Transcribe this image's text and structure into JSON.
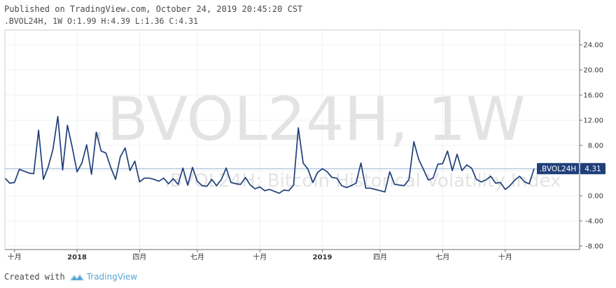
{
  "header": {
    "published": "Published on TradingView.com, October 24, 2019 20:45:20 CST",
    "ohlc": ".BVOL24H, 1W O:1.99 H:4.39 L:1.36 C:4.31"
  },
  "watermark": {
    "main": ".BVOL24H, 1W",
    "sub": ".BVOL24H: Bitcoin Historical Volatility Index"
  },
  "footer": {
    "created_with": "Created with",
    "brand": "TradingView"
  },
  "last_value_tag": {
    "symbol": ".BVOL24H",
    "value": "4.31"
  },
  "colors": {
    "line": "#1f3f7a",
    "tag_bg": "#1f3f7a",
    "last_line": "#9bb3d4",
    "grid": "#eef0f3"
  },
  "chart_data": {
    "type": "line",
    "title": "",
    "xlabel": "",
    "ylabel": "",
    "ylim": [
      -8,
      26
    ],
    "yticks": [
      24,
      20,
      16,
      12,
      8,
      4,
      0,
      -4,
      -8
    ],
    "ytick_labels": [
      "24.00",
      "20.00",
      "16.00",
      "12.00",
      "8.00",
      "4.00",
      "0.00",
      "-4.00",
      "-8.00"
    ],
    "xticks": [
      {
        "label": "十月",
        "idx": 2,
        "bold": false
      },
      {
        "label": "2018",
        "idx": 15,
        "bold": true
      },
      {
        "label": "四月",
        "idx": 28,
        "bold": false
      },
      {
        "label": "七月",
        "idx": 40,
        "bold": false
      },
      {
        "label": "十月",
        "idx": 53,
        "bold": false
      },
      {
        "label": "2019",
        "idx": 66,
        "bold": true
      },
      {
        "label": "四月",
        "idx": 78,
        "bold": false
      },
      {
        "label": "七月",
        "idx": 91,
        "bold": false
      },
      {
        "label": "十月",
        "idx": 104,
        "bold": false
      }
    ],
    "series": [
      {
        "values": [
          2.8,
          2.0,
          2.1,
          4.2,
          3.9,
          3.6,
          3.5,
          10.4,
          2.6,
          4.6,
          7.4,
          12.6,
          4.1,
          11.2,
          7.7,
          3.8,
          5.2,
          8.1,
          3.4,
          10.1,
          7.1,
          6.8,
          4.5,
          2.6,
          6.2,
          7.6,
          4.0,
          5.5,
          2.2,
          2.8,
          2.8,
          2.6,
          2.3,
          2.8,
          1.9,
          2.7,
          1.8,
          4.4,
          1.7,
          4.5,
          2.3,
          1.6,
          1.5,
          2.6,
          1.6,
          2.6,
          4.4,
          2.1,
          1.9,
          1.8,
          2.9,
          1.7,
          1.1,
          1.4,
          0.8,
          1.0,
          0.7,
          0.4,
          0.9,
          0.8,
          1.7,
          10.8,
          5.2,
          4.2,
          2.1,
          3.7,
          4.3,
          3.8,
          2.9,
          2.8,
          1.6,
          1.3,
          1.6,
          2.0,
          5.2,
          1.2,
          1.2,
          1.0,
          0.8,
          0.6,
          3.8,
          1.8,
          1.7,
          1.6,
          2.6,
          8.6,
          5.8,
          4.2,
          2.5,
          2.8,
          5.0,
          5.1,
          7.1,
          4.0,
          6.6,
          4.0,
          4.9,
          4.4,
          2.6,
          2.2,
          2.5,
          3.1,
          2.0,
          2.1,
          1.0,
          1.6,
          2.5,
          3.1,
          2.2,
          1.9,
          4.31
        ]
      }
    ],
    "last_value": 4.31
  }
}
